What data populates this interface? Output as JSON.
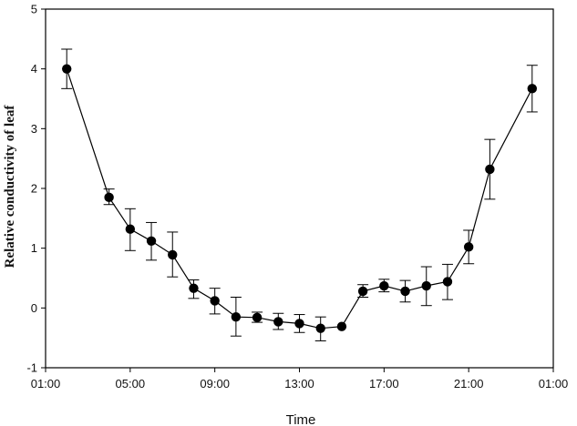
{
  "chart_data": {
    "type": "line",
    "title": "",
    "xlabel": "Time",
    "ylabel": "Relative conductivity of leaf",
    "xlim": [
      1,
      25
    ],
    "ylim": [
      -1,
      5
    ],
    "grid": false,
    "legend": "none",
    "x_tick_values": [
      1,
      5,
      9,
      13,
      17,
      21,
      25
    ],
    "x_tick_labels": [
      "01:00",
      "05:00",
      "09:00",
      "13:00",
      "17:00",
      "21:00",
      "01:00"
    ],
    "y_tick_values": [
      -1,
      0,
      1,
      2,
      3,
      4,
      5
    ],
    "y_tick_labels": [
      "-1",
      "0",
      "1",
      "2",
      "3",
      "4",
      "5"
    ],
    "series": [
      {
        "x": [
          2,
          4,
          5,
          6,
          7,
          8,
          9,
          10,
          11,
          12,
          13,
          14,
          15,
          16,
          17,
          18,
          19,
          20,
          21,
          22,
          24
        ],
        "y": [
          4.0,
          1.85,
          1.32,
          1.12,
          0.89,
          0.33,
          0.12,
          -0.15,
          -0.16,
          -0.23,
          -0.26,
          -0.34,
          -0.31,
          0.28,
          0.37,
          0.28,
          0.37,
          0.44,
          1.02,
          2.32,
          3.67
        ],
        "err_high": [
          4.33,
          1.99,
          1.66,
          1.43,
          1.27,
          0.47,
          0.33,
          0.18,
          -0.07,
          -0.09,
          -0.11,
          -0.15,
          -0.31,
          0.39,
          0.48,
          0.46,
          0.69,
          0.73,
          1.3,
          2.82,
          4.06
        ],
        "err_low": [
          3.67,
          1.73,
          0.96,
          0.8,
          0.52,
          0.16,
          -0.1,
          -0.47,
          -0.24,
          -0.36,
          -0.41,
          -0.55,
          -0.31,
          0.18,
          0.27,
          0.1,
          0.04,
          0.14,
          0.74,
          1.82,
          3.28
        ]
      }
    ],
    "colors": {
      "line": "#000000",
      "marker": "#000000",
      "axis": "#000000"
    }
  }
}
